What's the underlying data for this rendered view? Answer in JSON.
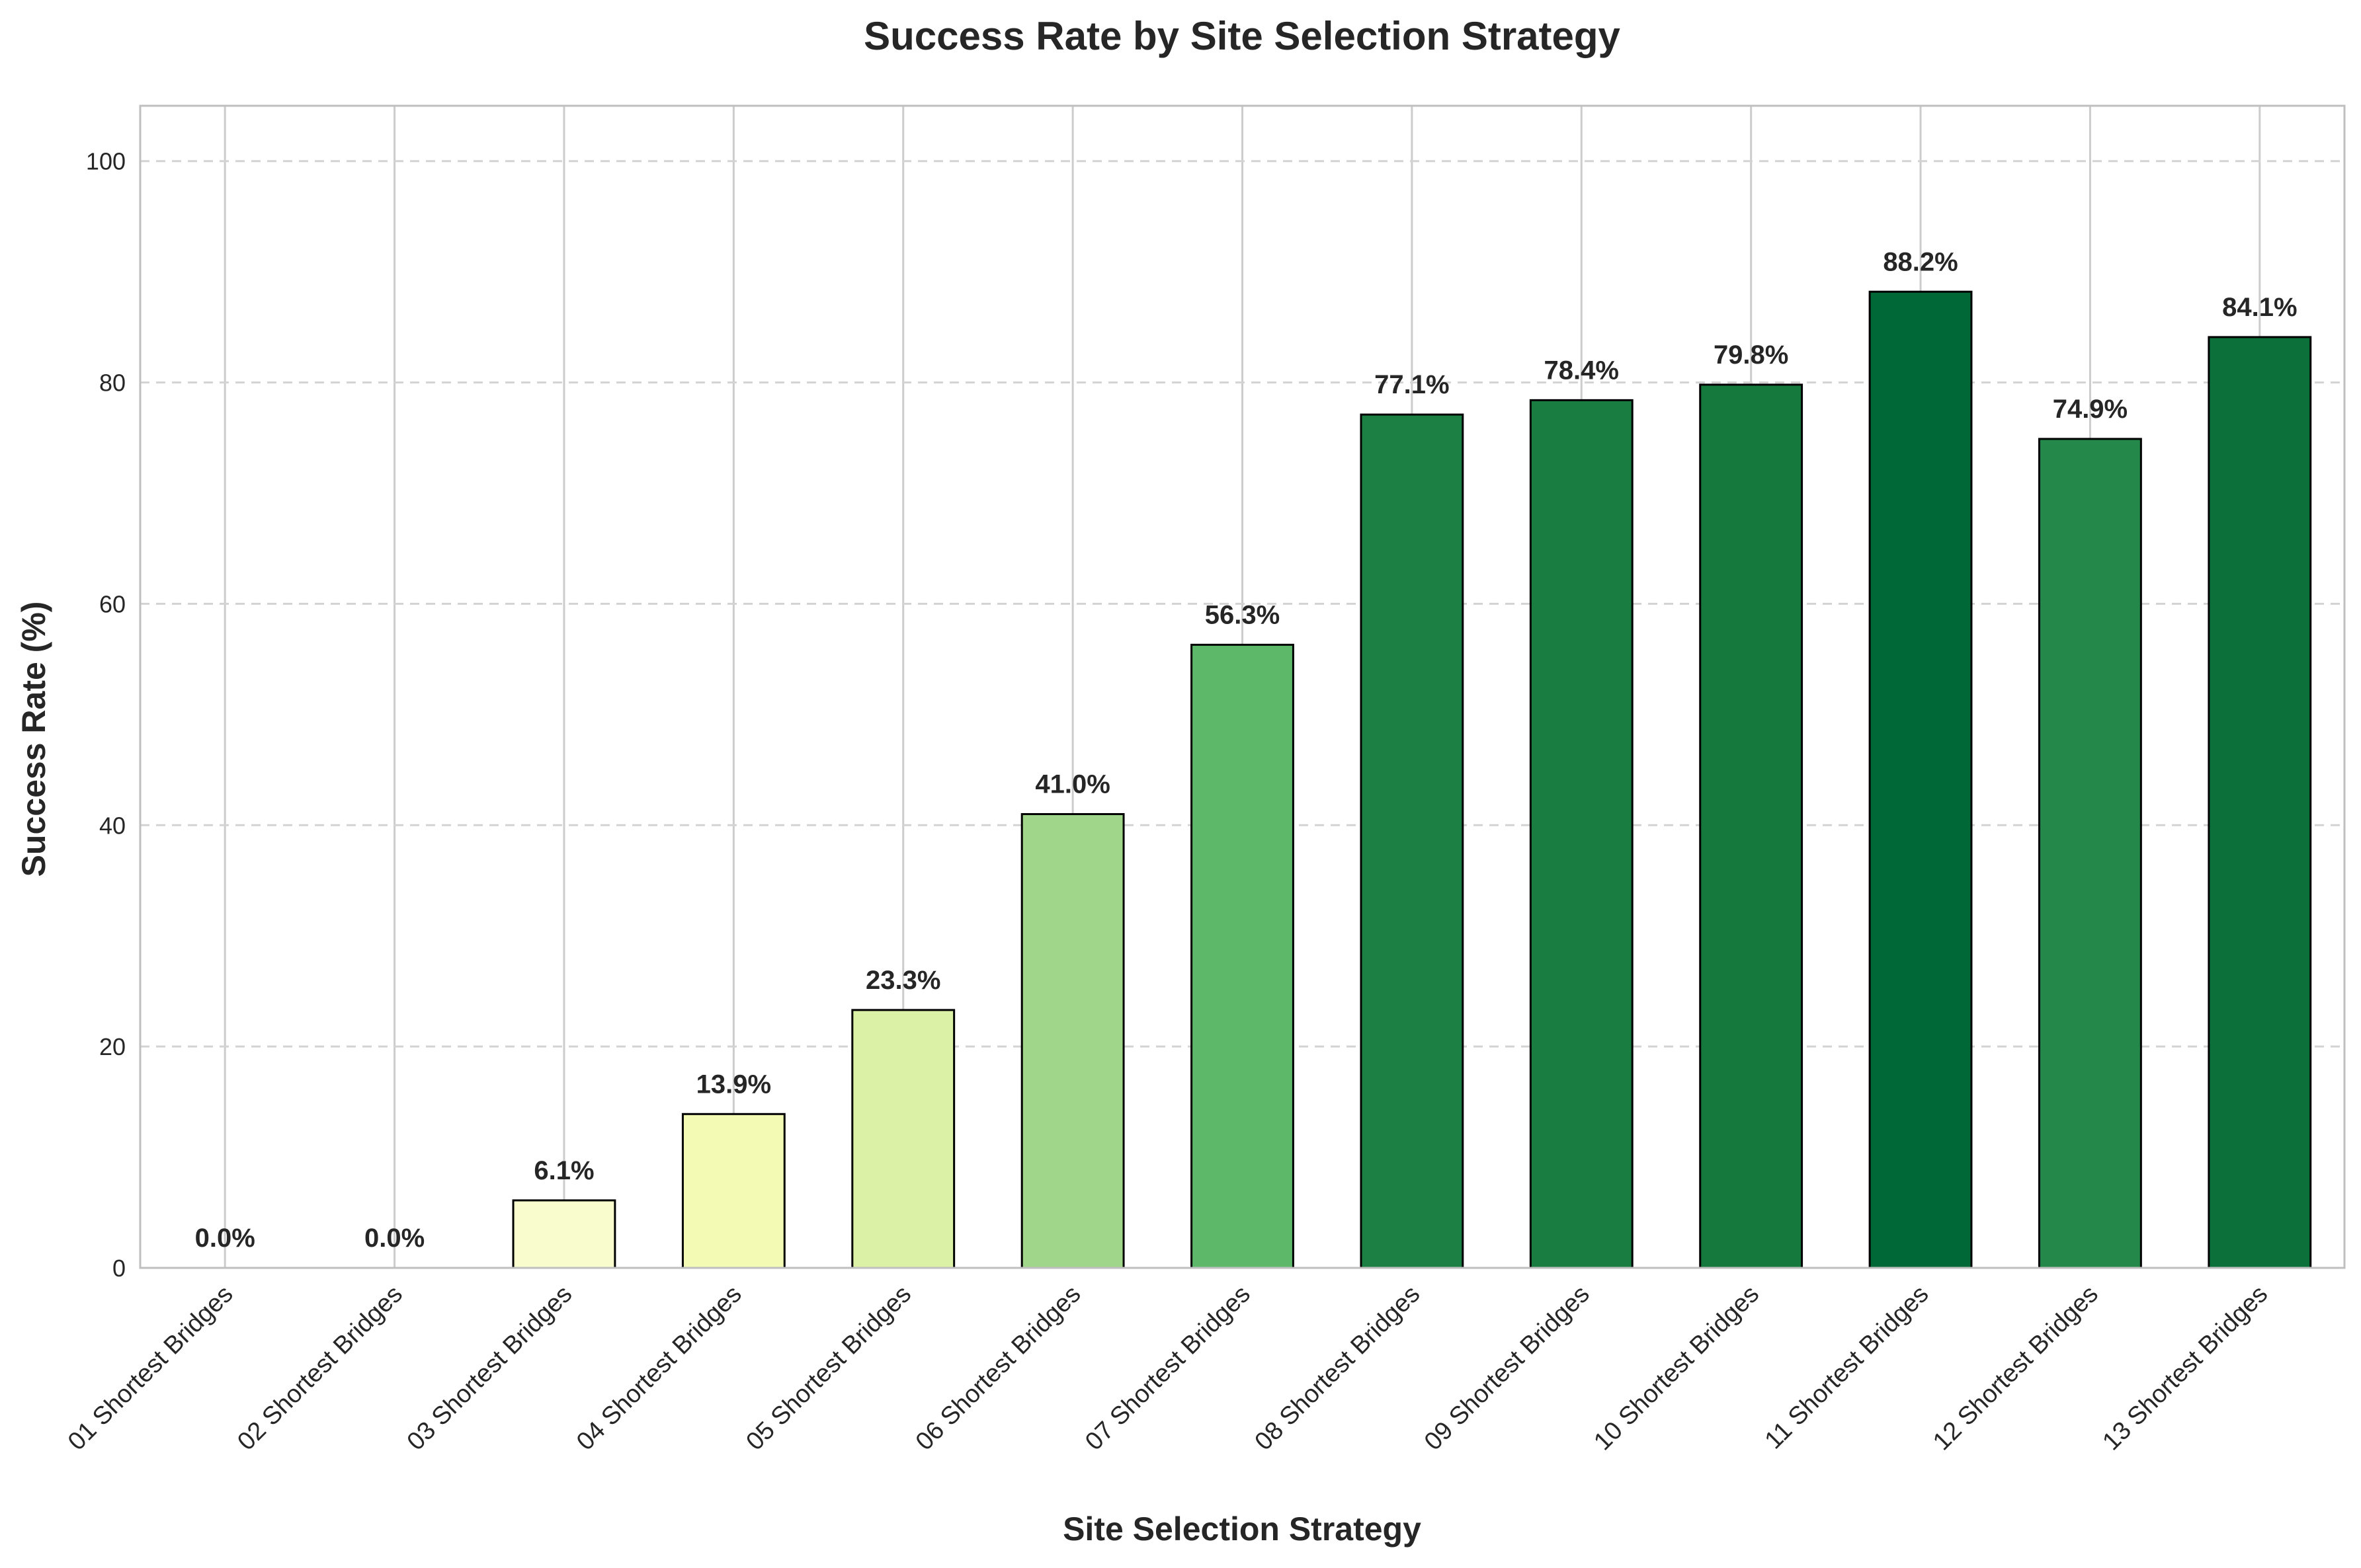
{
  "chart_data": {
    "type": "bar",
    "title": "Success Rate by Site Selection Strategy",
    "xlabel": "Site Selection Strategy",
    "ylabel": "Success Rate (%)",
    "ylim": [
      0,
      105
    ],
    "yticks": [
      0,
      20,
      40,
      60,
      80,
      100
    ],
    "grid": true,
    "categories": [
      "01 Shortest Bridges",
      "02 Shortest Bridges",
      "03 Shortest Bridges",
      "04 Shortest Bridges",
      "05 Shortest Bridges",
      "06 Shortest Bridges",
      "07 Shortest Bridges",
      "08 Shortest Bridges",
      "09 Shortest Bridges",
      "10 Shortest Bridges",
      "11 Shortest Bridges",
      "12 Shortest Bridges",
      "13 Shortest Bridges"
    ],
    "values": [
      0.0,
      0.0,
      6.1,
      13.9,
      23.3,
      41.0,
      56.3,
      77.1,
      78.4,
      79.8,
      88.2,
      74.9,
      84.1
    ],
    "data_labels": [
      "0.0%",
      "0.0%",
      "6.1%",
      "13.9%",
      "23.3%",
      "41.0%",
      "56.3%",
      "77.1%",
      "78.4%",
      "79.8%",
      "88.2%",
      "74.9%",
      "84.1%"
    ],
    "colors": [
      "#ffffe5",
      "#ffffe5",
      "#f9fdcd",
      "#f2fab4",
      "#dbf1a5",
      "#a0d68a",
      "#5db86a",
      "#1c8044",
      "#197c41",
      "#15793e",
      "#006837",
      "#24884a",
      "#0b7039"
    ]
  }
}
